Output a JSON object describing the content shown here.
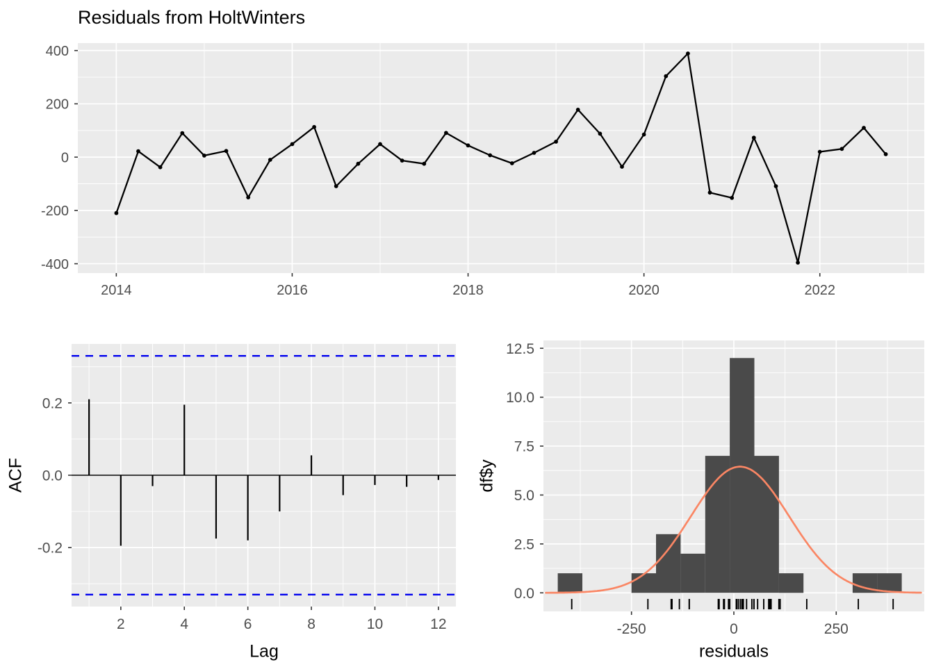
{
  "title": "Residuals from HoltWinters",
  "panels": {
    "timeseries": {
      "name": "residuals time series"
    },
    "acf": {
      "xlabel": "Lag",
      "ylabel": "ACF"
    },
    "histogram": {
      "xlabel": "residuals",
      "ylabel": "df$y"
    }
  },
  "colors": {
    "panel_bg": "#EBEBEB",
    "grid": "#FFFFFF",
    "tick_text": "#4D4D4D",
    "tick_mark": "#333333",
    "series_line": "#000000",
    "acf_bar": "#000000",
    "ci_line": "#0000EE",
    "hist_fill": "#4A4A4A",
    "normal_curve": "#FA8664",
    "rug": "#000000",
    "title_text": "#000000"
  },
  "chart_data": [
    {
      "id": "residuals_ts",
      "type": "line",
      "title": "Residuals from HoltWinters",
      "xlabel": "",
      "ylabel": "",
      "x": [
        2014.0,
        2014.25,
        2014.5,
        2014.75,
        2015.0,
        2015.25,
        2015.5,
        2015.75,
        2016.0,
        2016.25,
        2016.5,
        2016.75,
        2017.0,
        2017.25,
        2017.5,
        2017.75,
        2018.0,
        2018.25,
        2018.5,
        2018.75,
        2019.0,
        2019.25,
        2019.5,
        2019.75,
        2020.0,
        2020.25,
        2020.5,
        2020.75,
        2021.0,
        2021.25,
        2021.5,
        2021.75,
        2022.0,
        2022.25,
        2022.5,
        2022.75
      ],
      "y": [
        -210,
        22,
        -38,
        90,
        6,
        23,
        -151,
        -10,
        49,
        113,
        -109,
        -25,
        49,
        -13,
        -25,
        91,
        44,
        7,
        -23,
        16,
        58,
        178,
        88,
        -36,
        85,
        304,
        389,
        -133,
        -153,
        73,
        -109,
        -396,
        20,
        31,
        110,
        11
      ],
      "xticks": [
        2014,
        2016,
        2018,
        2020,
        2022
      ],
      "xtick_labels": [
        "2014",
        "2016",
        "2018",
        "2020",
        "2022"
      ],
      "x_minor": [
        2015,
        2017,
        2019,
        2021,
        2023
      ],
      "yticks": [
        400,
        200,
        0,
        -200,
        -400
      ],
      "ytick_labels": [
        "400",
        "200",
        "0",
        "-200",
        "-400"
      ],
      "y_minor": [
        300,
        100,
        -100,
        -300
      ],
      "xlim": [
        2013.5625,
        2023.1875
      ],
      "ylim": [
        -435,
        428
      ],
      "grid": true,
      "point_marker": true
    },
    {
      "id": "acf",
      "type": "bar",
      "xlabel": "Lag",
      "ylabel": "ACF",
      "lags": [
        1,
        2,
        3,
        4,
        5,
        6,
        7,
        8,
        9,
        10,
        11,
        12
      ],
      "values": [
        0.21,
        -0.195,
        -0.03,
        0.195,
        -0.175,
        -0.18,
        -0.1,
        0.055,
        -0.055,
        -0.027,
        -0.032,
        -0.013
      ],
      "ci": 0.33,
      "xticks": [
        2,
        4,
        6,
        8,
        10,
        12
      ],
      "xtick_labels": [
        "2",
        "4",
        "6",
        "8",
        "10",
        "12"
      ],
      "x_minor": [
        1,
        3,
        5,
        7,
        9,
        11
      ],
      "yticks": [
        0.2,
        0.0,
        -0.2
      ],
      "ytick_labels": [
        "0.2",
        "0.0",
        "-0.2"
      ],
      "y_minor": [
        0.3,
        0.1,
        -0.1,
        -0.3
      ],
      "xlim": [
        0.45,
        12.55
      ],
      "ylim": [
        -0.363,
        0.363
      ],
      "grid": true,
      "legend": "none"
    },
    {
      "id": "hist",
      "type": "histogram",
      "xlabel": "residuals",
      "ylabel": "df$y",
      "bin_start": -430,
      "bin_width": 60,
      "counts": [
        1,
        0,
        0,
        1,
        3,
        2,
        7,
        12,
        7,
        1,
        0,
        0,
        1,
        1
      ],
      "normal_curve": {
        "mean": 15,
        "sd": 120,
        "peak": 6.45
      },
      "rug": [
        -210,
        22,
        -38,
        90,
        6,
        23,
        -151,
        -10,
        49,
        113,
        -109,
        -25,
        49,
        -13,
        -25,
        91,
        44,
        7,
        -23,
        16,
        58,
        178,
        88,
        -36,
        85,
        304,
        389,
        -133,
        -153,
        73,
        -109,
        -396,
        20,
        31,
        110,
        11
      ],
      "xticks": [
        -250,
        0,
        250
      ],
      "xtick_labels": [
        "-250",
        "0",
        "250"
      ],
      "x_minor": [
        -375,
        -125,
        125,
        375
      ],
      "yticks": [
        0.0,
        2.5,
        5.0,
        7.5,
        10.0,
        12.5
      ],
      "ytick_labels": [
        "0.0",
        "2.5",
        "5.0",
        "7.5",
        "10.0",
        "12.5"
      ],
      "y_minor": [
        1.25,
        3.75,
        6.25,
        8.75,
        11.25
      ],
      "xlim": [
        -465,
        465
      ],
      "ylim": [
        -0.95,
        12.9
      ],
      "grid": true
    }
  ]
}
